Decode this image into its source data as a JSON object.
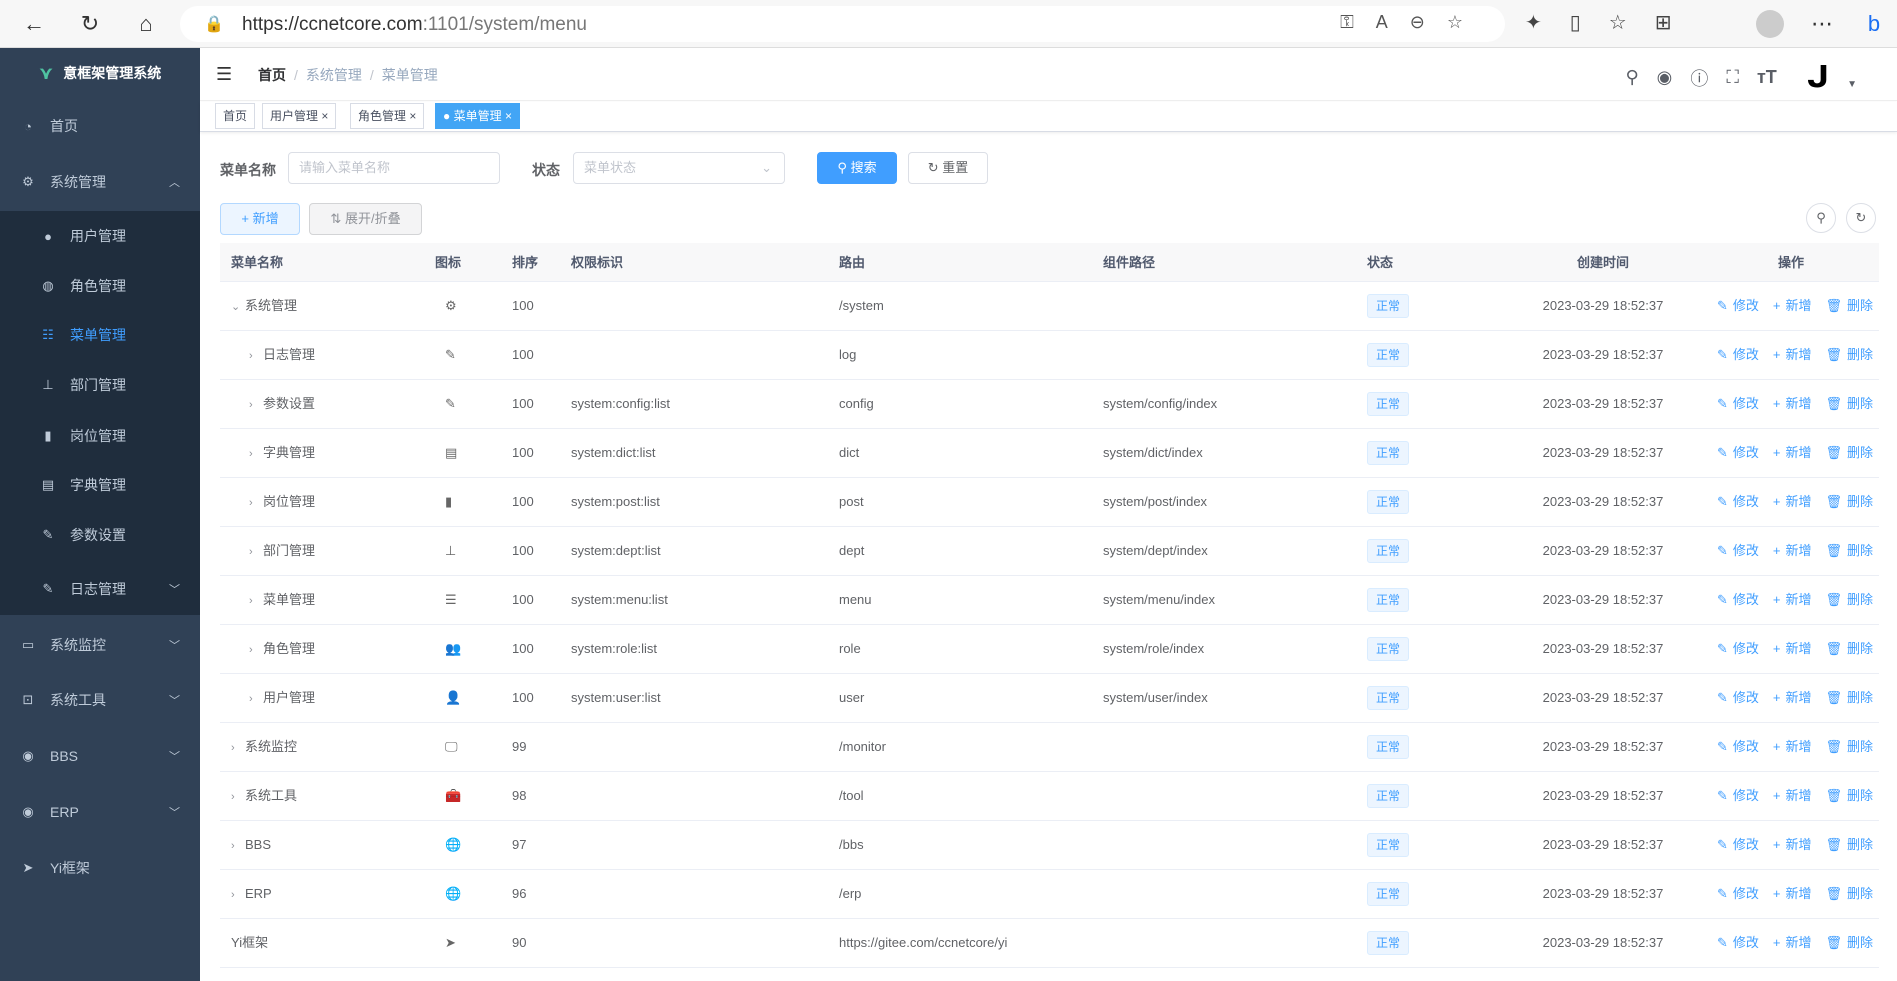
{
  "browser": {
    "url_host": "https://ccnetcore.com",
    "url_path": ":1101/system/menu"
  },
  "sidebar": {
    "title": "意框架管理系统",
    "items": [
      {
        "label": "首页",
        "icon": "dashboard-icon",
        "top": 78
      },
      {
        "label": "系统管理",
        "icon": "gear-icon",
        "expanded": true
      },
      {
        "label": "用户管理",
        "icon": "user-icon"
      },
      {
        "label": "角色管理",
        "icon": "peoples-icon"
      },
      {
        "label": "菜单管理",
        "icon": "tree-table-icon",
        "active": true
      },
      {
        "label": "部门管理",
        "icon": "tree-icon"
      },
      {
        "label": "岗位管理",
        "icon": "post-icon"
      },
      {
        "label": "字典管理",
        "icon": "dict-icon"
      },
      {
        "label": "参数设置",
        "icon": "edit-icon"
      },
      {
        "label": "日志管理",
        "icon": "log-icon"
      },
      {
        "label": "系统监控",
        "icon": "monitor-icon"
      },
      {
        "label": "系统工具",
        "icon": "tool-icon"
      },
      {
        "label": "BBS",
        "icon": "globe-icon"
      },
      {
        "label": "ERP",
        "icon": "globe-icon"
      },
      {
        "label": "Yi框架",
        "icon": "send-icon"
      }
    ]
  },
  "breadcrumb": [
    "首页",
    "系统管理",
    "菜单管理"
  ],
  "tabs": [
    {
      "label": "首页"
    },
    {
      "label": "用户管理"
    },
    {
      "label": "角色管理"
    },
    {
      "label": "菜单管理",
      "active": true
    }
  ],
  "search": {
    "name_label": "菜单名称",
    "name_placeholder": "请输入菜单名称",
    "status_label": "状态",
    "status_placeholder": "菜单状态",
    "search_btn": "搜索",
    "reset_btn": "重置"
  },
  "toolbar": {
    "add": "新增",
    "expand": "展开/折叠"
  },
  "table": {
    "headers": [
      "菜单名称",
      "图标",
      "排序",
      "权限标识",
      "路由",
      "组件路径",
      "状态",
      "创建时间",
      "操作"
    ],
    "actions": [
      "修改",
      "新增",
      "删除"
    ],
    "rows": [
      {
        "name": "系统管理",
        "icon": "⚙",
        "sort": "100",
        "perm": "",
        "route": "/system",
        "comp": "",
        "status": "正常",
        "time": "2023-03-29 18:52:37",
        "level": 0,
        "arrow": "down"
      },
      {
        "name": "日志管理",
        "icon": "✎",
        "sort": "100",
        "perm": "",
        "route": "log",
        "comp": "",
        "status": "正常",
        "time": "2023-03-29 18:52:37",
        "level": 1,
        "arrow": "right"
      },
      {
        "name": "参数设置",
        "icon": "✎",
        "sort": "100",
        "perm": "system:config:list",
        "route": "config",
        "comp": "system/config/index",
        "status": "正常",
        "time": "2023-03-29 18:52:37",
        "level": 1,
        "arrow": "right"
      },
      {
        "name": "字典管理",
        "icon": "▤",
        "sort": "100",
        "perm": "system:dict:list",
        "route": "dict",
        "comp": "system/dict/index",
        "status": "正常",
        "time": "2023-03-29 18:52:37",
        "level": 1,
        "arrow": "right"
      },
      {
        "name": "岗位管理",
        "icon": "▮",
        "sort": "100",
        "perm": "system:post:list",
        "route": "post",
        "comp": "system/post/index",
        "status": "正常",
        "time": "2023-03-29 18:52:37",
        "level": 1,
        "arrow": "right"
      },
      {
        "name": "部门管理",
        "icon": "⊥",
        "sort": "100",
        "perm": "system:dept:list",
        "route": "dept",
        "comp": "system/dept/index",
        "status": "正常",
        "time": "2023-03-29 18:52:37",
        "level": 1,
        "arrow": "right"
      },
      {
        "name": "菜单管理",
        "icon": "☰",
        "sort": "100",
        "perm": "system:menu:list",
        "route": "menu",
        "comp": "system/menu/index",
        "status": "正常",
        "time": "2023-03-29 18:52:37",
        "level": 1,
        "arrow": "right"
      },
      {
        "name": "角色管理",
        "icon": "👥",
        "sort": "100",
        "perm": "system:role:list",
        "route": "role",
        "comp": "system/role/index",
        "status": "正常",
        "time": "2023-03-29 18:52:37",
        "level": 1,
        "arrow": "right"
      },
      {
        "name": "用户管理",
        "icon": "👤",
        "sort": "100",
        "perm": "system:user:list",
        "route": "user",
        "comp": "system/user/index",
        "status": "正常",
        "time": "2023-03-29 18:52:37",
        "level": 1,
        "arrow": "right"
      },
      {
        "name": "系统监控",
        "icon": "🖵",
        "sort": "99",
        "perm": "",
        "route": "/monitor",
        "comp": "",
        "status": "正常",
        "time": "2023-03-29 18:52:37",
        "level": 0,
        "arrow": "right"
      },
      {
        "name": "系统工具",
        "icon": "🧰",
        "sort": "98",
        "perm": "",
        "route": "/tool",
        "comp": "",
        "status": "正常",
        "time": "2023-03-29 18:52:37",
        "level": 0,
        "arrow": "right"
      },
      {
        "name": "BBS",
        "icon": "🌐",
        "sort": "97",
        "perm": "",
        "route": "/bbs",
        "comp": "",
        "status": "正常",
        "time": "2023-03-29 18:52:37",
        "level": 0,
        "arrow": "right"
      },
      {
        "name": "ERP",
        "icon": "🌐",
        "sort": "96",
        "perm": "",
        "route": "/erp",
        "comp": "",
        "status": "正常",
        "time": "2023-03-29 18:52:37",
        "level": 0,
        "arrow": "right"
      },
      {
        "name": "Yi框架",
        "icon": "➤",
        "sort": "90",
        "perm": "",
        "route": "https://gitee.com/ccnetcore/yi",
        "comp": "",
        "status": "正常",
        "time": "2023-03-29 18:52:37",
        "level": 0,
        "arrow": ""
      }
    ]
  },
  "colors": {
    "sidebar": "#304156",
    "submenu": "#1f2d3d",
    "primary": "#409eff",
    "tab_active": "#42a5f5"
  }
}
